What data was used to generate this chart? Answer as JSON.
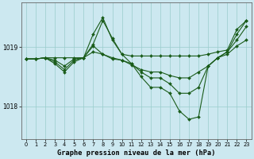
{
  "title": "Graphe pression niveau de la mer (hPa)",
  "background_color": "#cce8f0",
  "grid_color": "#99cccc",
  "line_color": "#1a5c1a",
  "xlim": [
    -0.5,
    23.5
  ],
  "ylim": [
    1017.45,
    1019.75
  ],
  "yticks": [
    1018,
    1019
  ],
  "xticks": [
    0,
    1,
    2,
    3,
    4,
    5,
    6,
    7,
    8,
    9,
    10,
    11,
    12,
    13,
    14,
    15,
    16,
    17,
    18,
    19,
    20,
    21,
    22,
    23
  ],
  "series": [
    [
      1018.8,
      1018.8,
      1018.82,
      1018.82,
      1018.82,
      1018.82,
      1018.82,
      1019.05,
      1019.45,
      1019.15,
      1018.88,
      1018.85,
      1018.85,
      1018.85,
      1018.85,
      1018.85,
      1018.85,
      1018.85,
      1018.85,
      1018.88,
      1018.92,
      1018.95,
      1019.3,
      1019.45
    ],
    [
      1018.8,
      1018.8,
      1018.82,
      1018.75,
      1018.62,
      1018.78,
      1018.82,
      1019.22,
      1019.5,
      1019.12,
      1018.88,
      1018.72,
      1018.5,
      1018.32,
      1018.32,
      1018.22,
      1017.92,
      1017.78,
      1017.82,
      1018.68,
      1018.82,
      1018.92,
      1019.22,
      1019.45
    ],
    [
      1018.8,
      1018.8,
      1018.82,
      1018.72,
      1018.58,
      1018.75,
      1018.82,
      1019.02,
      1018.88,
      1018.82,
      1018.78,
      1018.72,
      1018.58,
      1018.48,
      1018.48,
      1018.38,
      1018.22,
      1018.22,
      1018.32,
      1018.68,
      1018.82,
      1018.92,
      1019.12,
      1019.35
    ],
    [
      1018.8,
      1018.8,
      1018.82,
      1018.78,
      1018.68,
      1018.8,
      1018.82,
      1018.92,
      1018.88,
      1018.8,
      1018.78,
      1018.7,
      1018.62,
      1018.58,
      1018.58,
      1018.52,
      1018.48,
      1018.48,
      1018.58,
      1018.68,
      1018.82,
      1018.88,
      1019.02,
      1019.12
    ]
  ]
}
